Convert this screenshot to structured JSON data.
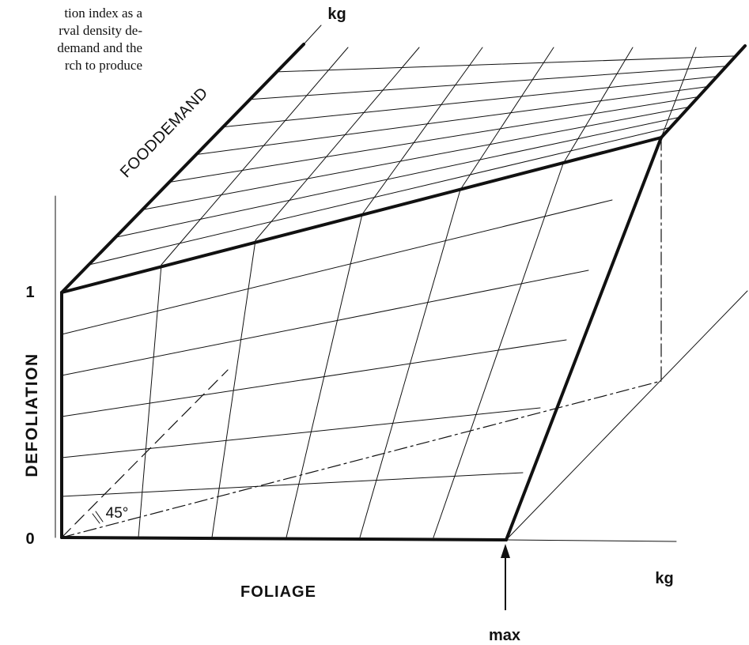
{
  "text_fragment": {
    "lines": [
      "tion index as a",
      "rval density de-",
      "demand and the",
      "rch to produce"
    ]
  },
  "axes": {
    "z_label": "DEFOLIATION",
    "x_label": "FOLIAGE",
    "depth_label": "FOODDEMAND",
    "x_unit": "kg",
    "depth_unit": "kg",
    "z_tick_bottom": "0",
    "z_tick_top": "1",
    "marker_label": "max",
    "angle_label": "45°"
  },
  "colors": {
    "ink": "#111111",
    "paper": "#ffffff"
  }
}
